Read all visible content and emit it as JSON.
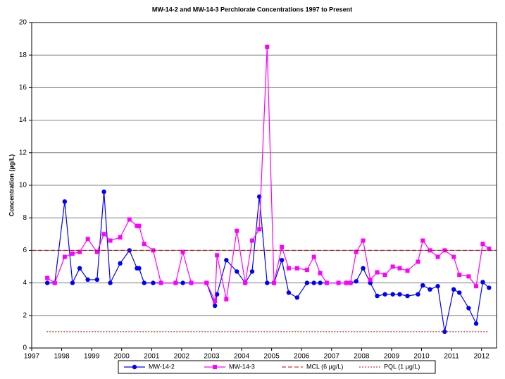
{
  "chart_data": {
    "type": "line",
    "title": "MW-14-2 and MW-14-3 Perchlorate Concentrations 1997 to Present",
    "y_label": "Concentration  (µg/L)",
    "xlim": [
      1997,
      2012.5
    ],
    "xticks": [
      1997,
      1998,
      1999,
      2000,
      2001,
      2002,
      2003,
      2004,
      2005,
      2006,
      2007,
      2008,
      2009,
      2010,
      2011,
      2012
    ],
    "ylim": [
      0,
      20
    ],
    "yticks": [
      0,
      2,
      4,
      6,
      8,
      10,
      12,
      14,
      16,
      18,
      20
    ],
    "grid": true,
    "legend": "bottom",
    "series": [
      {
        "name": "MW-14-2",
        "color": "#0000ff",
        "marker": "circle",
        "x": [
          1997.52,
          1997.77,
          1998.1,
          1998.36,
          1998.6,
          1998.87,
          1999.18,
          1999.41,
          1999.62,
          1999.95,
          2000.26,
          2000.51,
          2000.58,
          2000.75,
          2001.05,
          2001.31,
          2001.8,
          2002.04,
          2002.32,
          2002.83,
          2003.11,
          2003.18,
          2003.49,
          2003.84,
          2004.12,
          2004.35,
          2004.59,
          2004.85,
          2005.08,
          2005.34,
          2005.57,
          2005.85,
          2006.18,
          2006.41,
          2006.62,
          2006.84,
          2007.23,
          2007.49,
          2007.63,
          2007.82,
          2008.05,
          2008.29,
          2008.52,
          2008.78,
          2009.04,
          2009.27,
          2009.53,
          2009.88,
          2010.04,
          2010.28,
          2010.54,
          2010.77,
          2011.07,
          2011.26,
          2011.57,
          2011.82,
          2012.04,
          2012.25
        ],
        "values": [
          4.0,
          4.0,
          9.0,
          4.0,
          4.9,
          4.2,
          4.2,
          9.6,
          4.0,
          5.2,
          6.0,
          4.9,
          4.9,
          4.0,
          4.0,
          4.0,
          4.0,
          4.0,
          4.0,
          4.0,
          2.6,
          3.3,
          5.4,
          4.7,
          4.0,
          4.7,
          9.3,
          4.0,
          4.0,
          5.4,
          3.4,
          3.1,
          4.0,
          4.0,
          4.0,
          4.0,
          4.0,
          4.0,
          4.0,
          4.1,
          4.9,
          4.0,
          3.2,
          3.3,
          3.3,
          3.3,
          3.2,
          3.3,
          3.85,
          3.6,
          3.8,
          1.0,
          3.6,
          3.4,
          2.45,
          1.5,
          4.05,
          3.7
        ]
      },
      {
        "name": "MW-14-3",
        "color": "#ff00ff",
        "marker": "square",
        "x": [
          1997.52,
          1997.77,
          1998.1,
          1998.36,
          1998.6,
          1998.87,
          1999.18,
          1999.41,
          1999.62,
          1999.95,
          2000.26,
          2000.51,
          2000.58,
          2000.75,
          2001.05,
          2001.31,
          2001.8,
          2002.04,
          2002.32,
          2002.83,
          2003.11,
          2003.18,
          2003.49,
          2003.84,
          2004.12,
          2004.35,
          2004.59,
          2004.85,
          2005.08,
          2005.34,
          2005.57,
          2005.85,
          2006.18,
          2006.41,
          2006.62,
          2006.84,
          2007.23,
          2007.49,
          2007.63,
          2007.82,
          2008.05,
          2008.29,
          2008.52,
          2008.78,
          2009.04,
          2009.27,
          2009.53,
          2009.88,
          2010.04,
          2010.28,
          2010.54,
          2010.77,
          2011.07,
          2011.26,
          2011.57,
          2011.82,
          2012.04,
          2012.25
        ],
        "values": [
          4.3,
          4.0,
          5.6,
          5.8,
          5.9,
          6.7,
          5.9,
          7.0,
          6.6,
          6.8,
          7.9,
          7.5,
          7.5,
          6.4,
          6.0,
          4.0,
          4.0,
          5.9,
          4.0,
          4.0,
          2.9,
          5.7,
          3.0,
          7.2,
          4.0,
          6.6,
          7.3,
          18.5,
          4.0,
          6.2,
          4.9,
          4.9,
          4.8,
          5.6,
          4.6,
          4.0,
          4.0,
          4.0,
          4.0,
          5.9,
          6.6,
          4.2,
          4.65,
          4.5,
          5.0,
          4.9,
          4.75,
          5.3,
          6.6,
          6.0,
          5.6,
          6.0,
          5.6,
          4.5,
          4.4,
          3.8,
          6.4,
          6.1
        ]
      },
      {
        "name": "MCL (6 µg/L)",
        "color": "#cc0000",
        "dash": "6,3",
        "x": [
          1997,
          2012.5
        ],
        "values": [
          6,
          6
        ]
      },
      {
        "name": "PQL (1 µg/L)",
        "color": "#cc0000",
        "dash": "2,2",
        "x": [
          1997.5,
          2012.25
        ],
        "values": [
          1,
          1
        ]
      }
    ]
  }
}
